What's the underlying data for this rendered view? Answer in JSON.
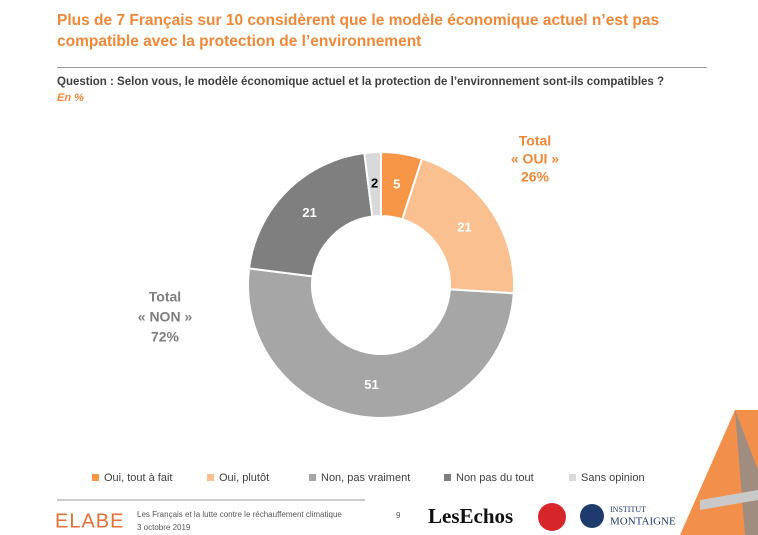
{
  "chart_data": {
    "type": "donut",
    "title": "Plus de 7 Français sur 10 considèrent que le modèle économique actuel n’est pas compatible avec la protection de l’environnement",
    "subtitle": "Question : Selon vous, le modèle économique actuel et la protection de l’environnement sont-ils compatibles ?",
    "unit_note": "En %",
    "categories": [
      "Oui, tout à fait",
      "Oui, plutôt",
      "Non, pas vraiment",
      "Non pas du tout",
      "Sans opinion"
    ],
    "values": [
      5,
      21,
      51,
      21,
      2
    ],
    "colors": [
      "#F79646",
      "#FAC090",
      "#A6A6A6",
      "#7F7F7F",
      "#D9D9D9"
    ],
    "label_colors": [
      "#ffffff",
      "#ffffff",
      "#ffffff",
      "#ffffff",
      "#000000"
    ],
    "annotations": [
      [
        "Total",
        "« OUI »",
        "26%"
      ],
      [
        "Total",
        "« NON »",
        "72%"
      ]
    ],
    "legend": "bottom"
  },
  "footer": {
    "brand": "ELABE",
    "study": "Les Français et la lutte contre le réchauffement climatique",
    "date": "3 octobre 2019",
    "page": "9",
    "partner1": "LesEchos",
    "partner2_line1": "INSTITUT",
    "partner2_line2": "MONTAIGNE"
  }
}
